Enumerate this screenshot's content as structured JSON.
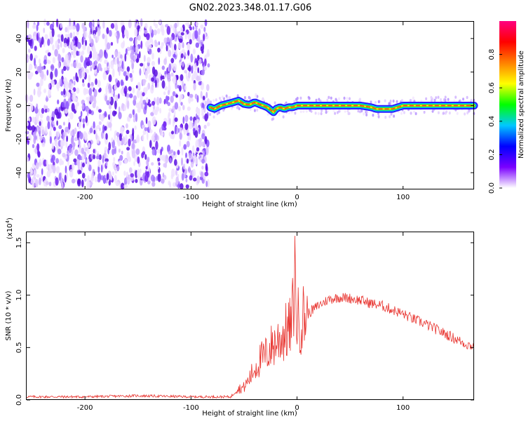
{
  "figure": {
    "title": "GN02.2023.348.01.17.G06"
  },
  "chart_data": [
    {
      "type": "heatmap",
      "panel": "spectrogram",
      "xlabel": "Height of straight line (km)",
      "ylabel": "Frequency (Hz)",
      "xlim": [
        -255,
        167
      ],
      "ylim": [
        -50,
        50
      ],
      "xticks": [
        -200,
        -100,
        0,
        100
      ],
      "yticks": [
        -40,
        -20,
        0,
        20,
        40
      ],
      "noise_region_x": [
        -255,
        -82
      ],
      "signal_region_x": [
        -82,
        167
      ],
      "ridge": {
        "x": [
          -82,
          -78,
          -72,
          -66,
          -60,
          -55,
          -50,
          -45,
          -40,
          -36,
          -32,
          -28,
          -24,
          -22,
          -20,
          -16,
          -12,
          -8,
          -4,
          0,
          20,
          40,
          60,
          70,
          75,
          80,
          90,
          95,
          100,
          120,
          140,
          167
        ],
        "y": [
          -1,
          -2,
          0,
          1,
          2,
          3,
          1,
          0.5,
          2,
          1,
          0,
          -1,
          -3,
          -4,
          -2,
          -1,
          -2,
          -1,
          -1,
          0,
          0,
          0,
          0,
          -1,
          -2,
          -2,
          -2,
          -1,
          0,
          0,
          0,
          0
        ]
      },
      "colorbar": {
        "label": "Normalized spectral amplitude",
        "ticks": [
          "0.0",
          "0.2",
          "0.4",
          "0.6",
          "0.8"
        ],
        "range": [
          0,
          1
        ],
        "colors": [
          "#ffffff",
          "#7a00ff",
          "#0000ff",
          "#00c8ff",
          "#00ff00",
          "#ffff00",
          "#ff8000",
          "#ff0000",
          "#ff0080"
        ]
      }
    },
    {
      "type": "line",
      "panel": "snr",
      "xlabel": "Height of straight line (km)",
      "ylabel": "SNR (10 * v/v)",
      "multiplier_label": "(x10",
      "multiplier_exp": "4",
      "multiplier_close": ")",
      "xlim": [
        -255,
        167
      ],
      "ylim": [
        0,
        1.6
      ],
      "xticks": [
        -200,
        -100,
        0,
        100
      ],
      "yticks": [
        "0.0",
        "0.5",
        "1.0",
        "1.5"
      ],
      "ytick_values": [
        0,
        0.5,
        1.0,
        1.5
      ],
      "series": [
        {
          "color": "#e8332e",
          "envelope_x": [
            -255,
            -200,
            -150,
            -100,
            -62,
            -58,
            -50,
            -45,
            -40,
            -35,
            -30,
            -25,
            -20,
            -15,
            -10,
            -5,
            -2,
            0,
            5,
            10,
            20,
            30,
            40,
            50,
            60,
            70,
            80,
            90,
            100,
            110,
            120,
            130,
            140,
            150,
            160,
            167
          ],
          "envelope_y": [
            0.03,
            0.03,
            0.04,
            0.03,
            0.03,
            0.1,
            0.12,
            0.2,
            0.3,
            0.38,
            0.42,
            0.5,
            0.55,
            0.6,
            0.65,
            0.7,
            1.2,
            0.75,
            0.78,
            0.82,
            0.9,
            0.96,
            0.98,
            0.97,
            0.95,
            0.92,
            0.9,
            0.86,
            0.82,
            0.77,
            0.73,
            0.68,
            0.63,
            0.58,
            0.53,
            0.51
          ]
        }
      ]
    }
  ]
}
